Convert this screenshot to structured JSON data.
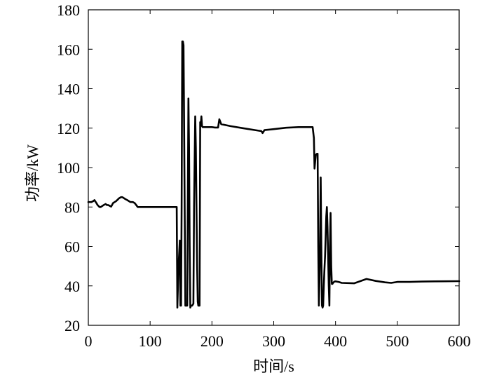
{
  "chart_data": {
    "type": "line",
    "title": "",
    "xlabel": "时间/s",
    "ylabel": "功率/kW",
    "xlim": [
      0,
      600
    ],
    "ylim": [
      20,
      180
    ],
    "xticks": [
      0,
      100,
      200,
      300,
      400,
      500,
      600
    ],
    "yticks": [
      20,
      40,
      60,
      80,
      100,
      120,
      140,
      160,
      180
    ],
    "grid": false,
    "line_color": "#000000",
    "series": [
      {
        "x": [
          0,
          5,
          8,
          10,
          13,
          15,
          18,
          20,
          25,
          28,
          30,
          32,
          35,
          37,
          40,
          45,
          50,
          53,
          55,
          60,
          63,
          68,
          70,
          72,
          75,
          80,
          100,
          120,
          140,
          143,
          144,
          146,
          148,
          149,
          150,
          151,
          152,
          153,
          154,
          155,
          157,
          158,
          159,
          160,
          161,
          162,
          163,
          164,
          165,
          166,
          167,
          168,
          170,
          171,
          173,
          174,
          175,
          176,
          177,
          178,
          179,
          180,
          181,
          182,
          183,
          184,
          185,
          186,
          187,
          188,
          189,
          190,
          200,
          205,
          210,
          212,
          215,
          230,
          250,
          270,
          280,
          282,
          285,
          300,
          320,
          340,
          363,
          365,
          366,
          368,
          370,
          371,
          372,
          373,
          374,
          375,
          376,
          377,
          378,
          379,
          380,
          381,
          382,
          383,
          384,
          385,
          386,
          387,
          388,
          389,
          390,
          391,
          392,
          393,
          394,
          395,
          396,
          397,
          398,
          400,
          405,
          410,
          430,
          450,
          465,
          480,
          490,
          500,
          520,
          540,
          560,
          600
        ],
        "y": [
          82.5,
          82.5,
          83,
          83.5,
          82,
          81,
          80,
          80,
          81,
          81.5,
          81,
          81,
          80.5,
          80.2,
          82,
          83,
          84.5,
          85,
          85,
          84,
          83.5,
          82.5,
          82.5,
          82.5,
          82,
          80,
          80,
          80,
          80,
          80,
          29,
          50,
          63,
          30,
          30,
          80,
          164,
          164,
          162,
          120,
          30,
          30,
          30,
          30,
          80,
          135,
          110,
          60,
          29,
          30,
          30,
          30,
          31,
          80,
          126,
          110,
          80,
          50,
          32,
          30,
          30,
          30,
          123,
          122,
          126,
          121,
          120.5,
          120.5,
          120.5,
          120.5,
          120.5,
          120.5,
          120.5,
          120.3,
          120.3,
          124.5,
          122,
          121,
          120,
          119,
          118.5,
          117.5,
          119,
          119.5,
          120.2,
          120.5,
          120.5,
          115,
          99.5,
          106.5,
          107,
          107,
          60,
          30,
          42,
          60,
          95,
          60,
          30,
          29,
          30,
          40,
          48,
          55,
          65,
          75,
          80,
          70,
          55,
          40,
          30,
          60,
          77,
          50,
          41,
          41,
          41.5,
          41.8,
          42.2,
          42.3,
          42,
          41.5,
          41.3,
          43.5,
          42.5,
          41.8,
          41.5,
          42,
          42,
          42.2,
          42.3,
          42.4
        ]
      }
    ]
  }
}
